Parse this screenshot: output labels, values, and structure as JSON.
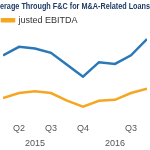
{
  "chart_data": {
    "type": "line",
    "title": "erage Through F&C for M&A-Related Loans",
    "categories": [
      null,
      "Q2",
      null,
      "Q3",
      null,
      "Q4",
      null,
      null,
      "Q3",
      null
    ],
    "years": [
      null,
      null,
      "2015",
      null,
      null,
      null,
      null,
      "2016",
      null,
      null
    ],
    "series": [
      {
        "color": "#2a78b8",
        "values": [
          7.6,
          8.6,
          8.4,
          7.9,
          6.5,
          5.1,
          6.8,
          6.6,
          7.6,
          9.5
        ]
      },
      {
        "name": "justed EBITDA",
        "color": "#f5a623",
        "values": [
          2.6,
          3.2,
          3.4,
          3.2,
          2.3,
          1.6,
          2.3,
          2.4,
          3.2,
          3.7
        ]
      }
    ],
    "ylim": [
      0,
      10
    ],
    "grid": false,
    "legend": "top",
    "tick_labels": "x"
  }
}
